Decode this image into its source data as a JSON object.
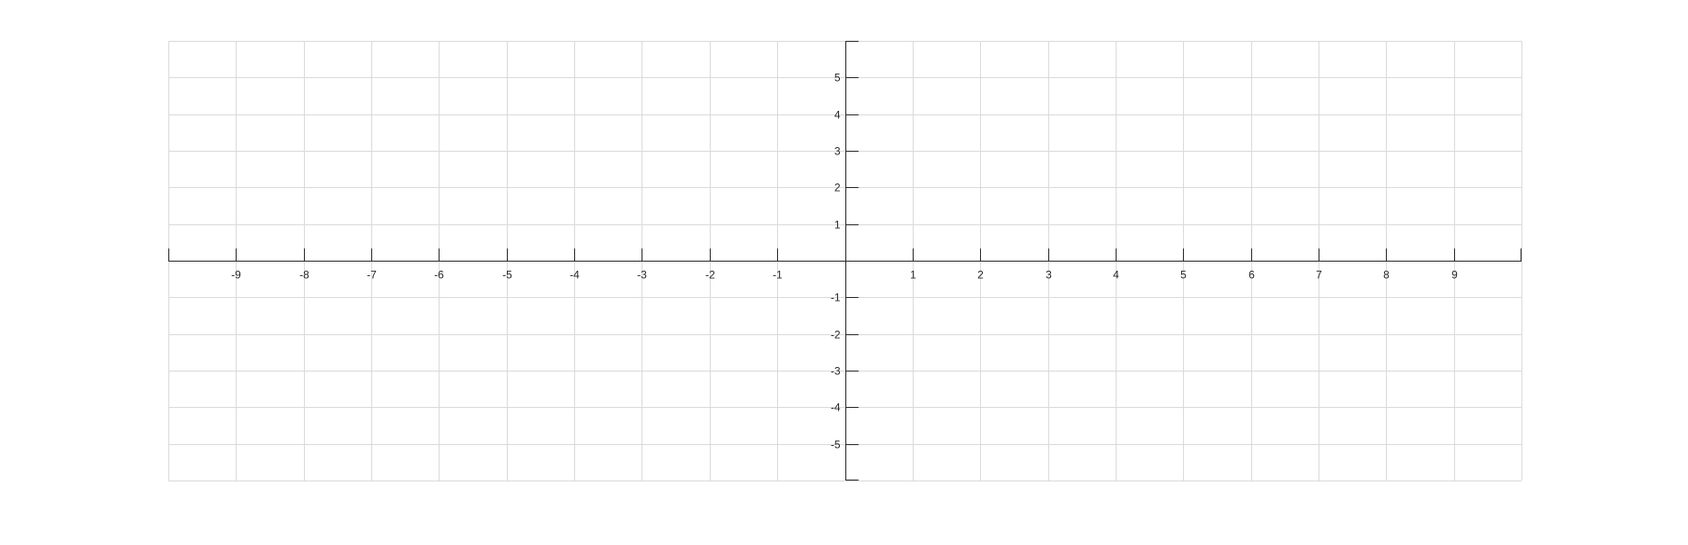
{
  "chart_data": {
    "type": "scatter",
    "title": "",
    "xlabel": "",
    "ylabel": "",
    "xlim": [
      -10,
      10
    ],
    "ylim": [
      -6,
      6
    ],
    "grid": true,
    "x_ticks": [
      -9,
      -8,
      -7,
      -6,
      -5,
      -4,
      -3,
      -2,
      -1,
      1,
      2,
      3,
      4,
      5,
      6,
      7,
      8,
      9
    ],
    "x_tick_labels": [
      "-9",
      "-8",
      "-7",
      "-6",
      "-5",
      "-4",
      "-3",
      "-2",
      "-1",
      "1",
      "2",
      "3",
      "4",
      "5",
      "6",
      "7",
      "8",
      "9"
    ],
    "y_ticks": [
      5,
      4,
      3,
      2,
      1,
      -1,
      -2,
      -3,
      -4,
      -5
    ],
    "y_tick_labels": [
      "5",
      "4",
      "3",
      "2",
      "1",
      "-1",
      "-2",
      "-3",
      "-4",
      "-5"
    ],
    "series": []
  },
  "colors": {
    "background": "#ffffff",
    "grid": "#dadada",
    "axis": "#262626",
    "tick_label": "#262626"
  }
}
